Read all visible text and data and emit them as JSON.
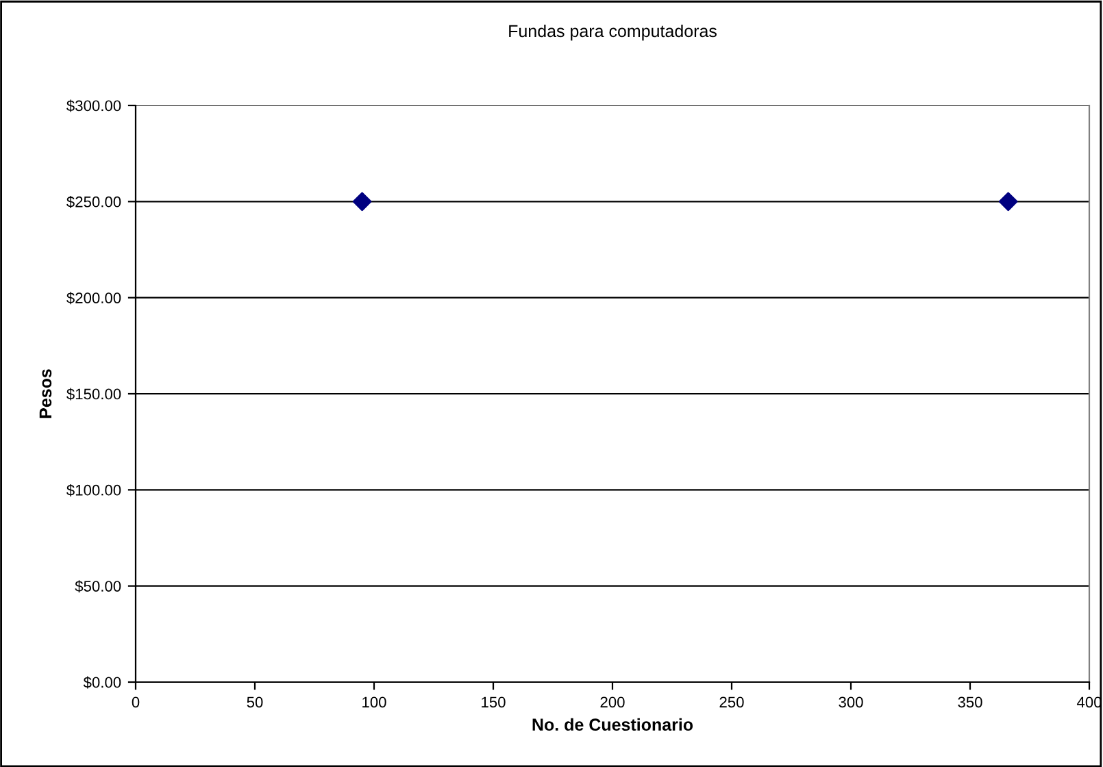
{
  "chart_data": {
    "type": "scatter",
    "title": "Fundas para computadoras",
    "xlabel": "No. de Cuestionario",
    "ylabel": "Pesos",
    "x": [
      95,
      366
    ],
    "values": [
      250,
      250
    ],
    "color": "#000080",
    "marker": "diamond",
    "xlim": [
      0,
      400
    ],
    "xticks": [
      0,
      50,
      100,
      150,
      200,
      250,
      300,
      350,
      400
    ],
    "ylim": [
      0,
      300
    ],
    "yticks": [
      {
        "value": 0,
        "label": "$0.00"
      },
      {
        "value": 50,
        "label": "$50.00"
      },
      {
        "value": 100,
        "label": "$100.00"
      },
      {
        "value": 150,
        "label": "$150.00"
      },
      {
        "value": 200,
        "label": "$200.00"
      },
      {
        "value": 250,
        "label": "$250.00"
      },
      {
        "value": 300,
        "label": "$300.00"
      }
    ],
    "grid": "y",
    "legend": false
  }
}
